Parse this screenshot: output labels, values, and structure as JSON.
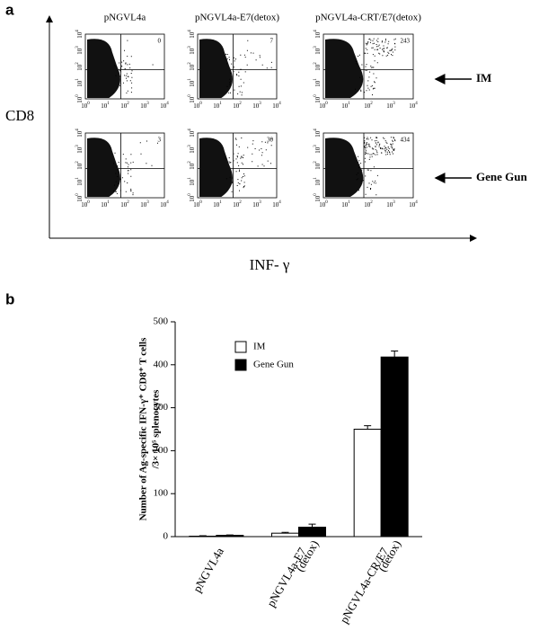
{
  "panel_a": {
    "label": "a",
    "columns": [
      "pNGVL4a",
      "pNGVL4a-E7(detox)",
      "pNGVL4a-CRT/E7(detox)"
    ],
    "rows": [
      {
        "label": "IM",
        "counts": [
          0,
          7,
          243
        ]
      },
      {
        "label": "Gene Gun",
        "counts": [
          3,
          30,
          434
        ]
      }
    ],
    "y_axis_label": "CD8",
    "x_axis_label": "INF- γ",
    "tick_base": "10",
    "tick_exponents": [
      "0",
      "1",
      "2",
      "3",
      "4"
    ]
  },
  "chart_data": {
    "type": "bar",
    "panel_label": "b",
    "categories": [
      [
        "pNGVL4a"
      ],
      [
        "pNGVL4a-E7",
        "(detox)"
      ],
      [
        "pNGVL4a-CR/E7",
        "(detox)"
      ]
    ],
    "series": [
      {
        "name": "IM",
        "color": "#ffffff",
        "values": [
          1,
          8,
          250
        ],
        "errors": [
          1,
          2,
          8
        ]
      },
      {
        "name": "Gene Gun",
        "color": "#000000",
        "values": [
          3,
          22,
          418
        ],
        "errors": [
          1,
          7,
          14
        ]
      }
    ],
    "ylabel_lines": [
      "Number of Ag-specific IFN-γ⁺ CD8⁺ T cells",
      "/3× 10⁵ splenocytes"
    ],
    "ylim": [
      0,
      500
    ],
    "yticks": [
      0,
      100,
      200,
      300,
      400,
      500
    ]
  }
}
